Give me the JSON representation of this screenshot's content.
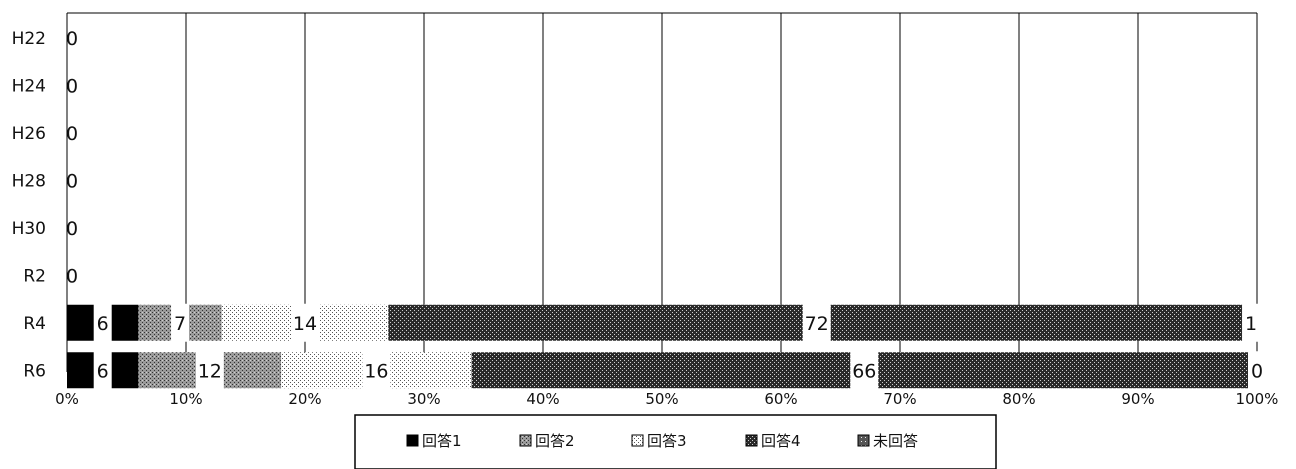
{
  "chart_data": {
    "type": "bar",
    "orientation": "horizontal",
    "stacked": "percent",
    "categories": [
      "H22",
      "H24",
      "H26",
      "H28",
      "H30",
      "R2",
      "R4",
      "R6"
    ],
    "series": [
      {
        "name": "回答1",
        "values": [
          0,
          0,
          0,
          0,
          0,
          0,
          6,
          6
        ]
      },
      {
        "name": "回答2",
        "values": [
          0,
          0,
          0,
          0,
          0,
          0,
          7,
          12
        ]
      },
      {
        "name": "回答3",
        "values": [
          0,
          0,
          0,
          0,
          0,
          0,
          14,
          16
        ]
      },
      {
        "name": "回答4",
        "values": [
          0,
          0,
          0,
          0,
          0,
          0,
          72,
          66
        ]
      },
      {
        "name": "未回答",
        "values": [
          0,
          0,
          0,
          0,
          0,
          0,
          1,
          0
        ]
      }
    ],
    "xticks": [
      "0%",
      "10%",
      "20%",
      "30%",
      "40%",
      "50%",
      "60%",
      "70%",
      "80%",
      "90%",
      "100%"
    ],
    "xlim": [
      0,
      100
    ],
    "grid": "vertical",
    "legend_position": "bottom",
    "title": "",
    "xlabel": "",
    "ylabel": ""
  }
}
